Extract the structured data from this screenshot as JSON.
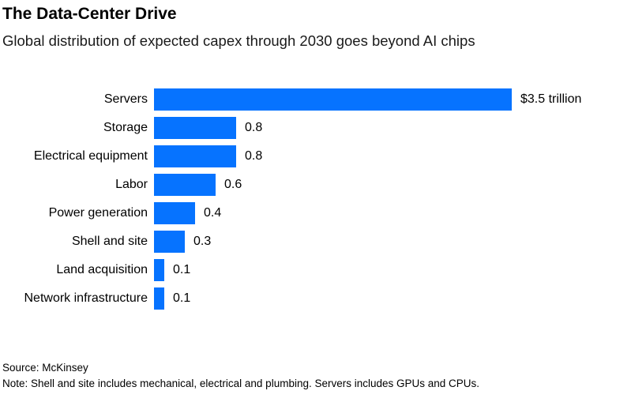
{
  "header": {
    "title": "The Data-Center Drive",
    "subtitle": "Global distribution of expected capex through 2030 goes beyond AI chips"
  },
  "chart_data": {
    "type": "bar",
    "orientation": "horizontal",
    "title": "The Data-Center Drive",
    "subtitle": "Global distribution of expected capex through 2030 goes beyond AI chips",
    "categories": [
      "Servers",
      "Storage",
      "Electrical equipment",
      "Labor",
      "Power generation",
      "Shell and site",
      "Land acquisition",
      "Network infrastructure"
    ],
    "values": [
      3.5,
      0.8,
      0.8,
      0.6,
      0.4,
      0.3,
      0.1,
      0.1
    ],
    "value_labels": [
      "$3.5 trillion",
      "0.8",
      "0.8",
      "0.6",
      "0.4",
      "0.3",
      "0.1",
      "0.1"
    ],
    "xlim": [
      0,
      3.5
    ],
    "bar_color": "#0673ff",
    "grid": false,
    "legend": false
  },
  "footer": {
    "source": "Source: McKinsey",
    "note": "Note: Shell and site includes mechanical, electrical and plumbing. Servers includes GPUs and CPUs."
  }
}
